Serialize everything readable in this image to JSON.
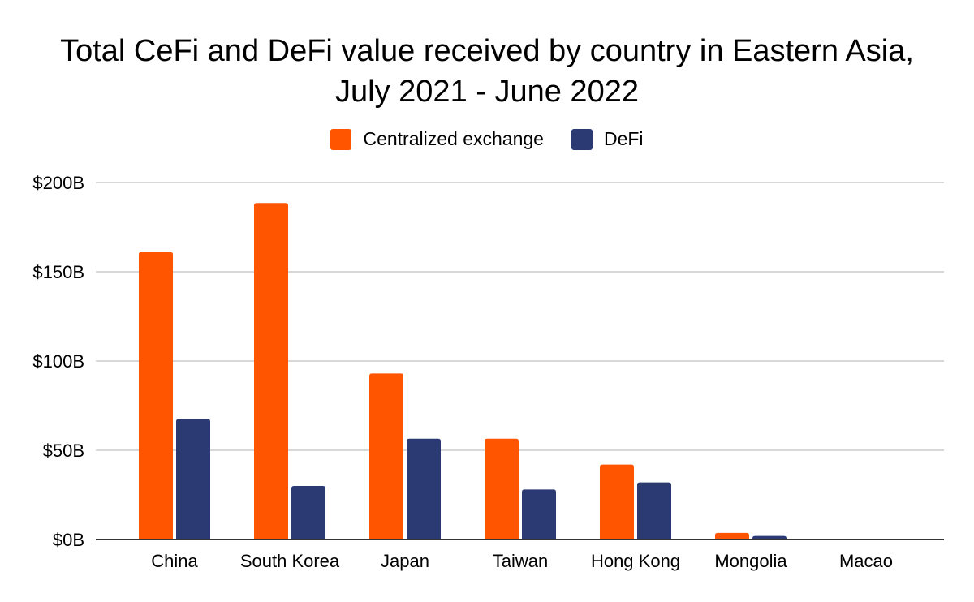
{
  "chart_data": {
    "type": "bar",
    "title_line1": "Total CeFi and DeFi value received by country in Eastern Asia,",
    "title_line2": "July 2021 - June 2022",
    "categories": [
      "China",
      "South Korea",
      "Japan",
      "Taiwan",
      "Hong Kong",
      "Mongolia",
      "Macao"
    ],
    "series": [
      {
        "name": "Centralized exchange",
        "color": "#ff5500",
        "values": [
          161,
          188.5,
          93,
          56.5,
          42,
          3.7,
          0
        ]
      },
      {
        "name": "DeFi",
        "color": "#2b3a73",
        "values": [
          67.5,
          30,
          56.5,
          28,
          32,
          2,
          0
        ]
      }
    ],
    "y_ticks": [
      {
        "value": 0,
        "label": "$0B"
      },
      {
        "value": 50,
        "label": "$50B"
      },
      {
        "value": 100,
        "label": "$100B"
      },
      {
        "value": 150,
        "label": "$150B"
      },
      {
        "value": 200,
        "label": "$200B"
      }
    ],
    "ylim": [
      0,
      200
    ],
    "xlabel": "",
    "ylabel": "",
    "grid": true,
    "legend_position": "top"
  }
}
